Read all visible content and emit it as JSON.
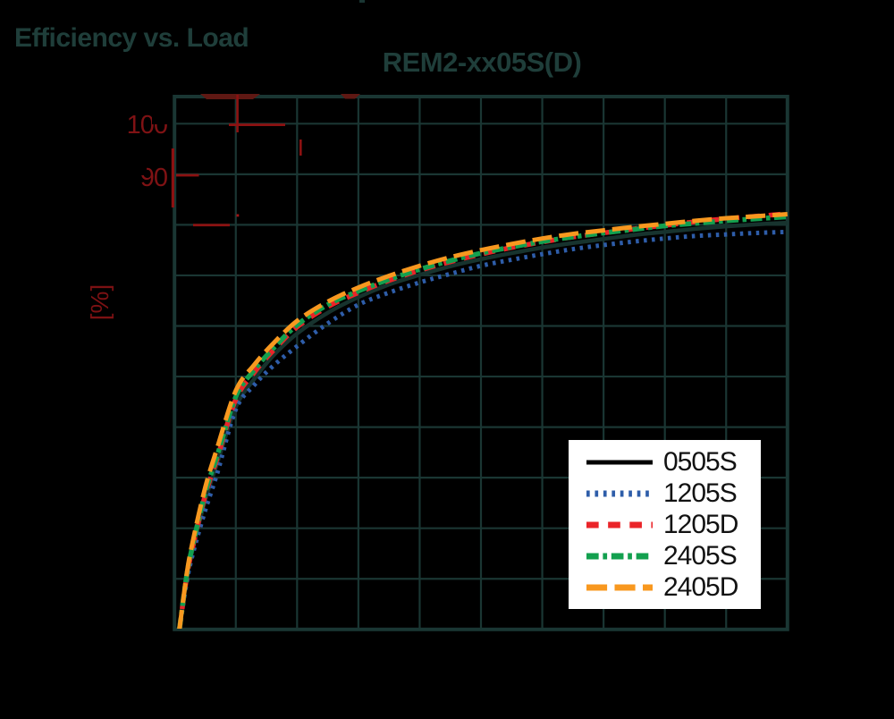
{
  "header": {
    "page_title": "Efficiency vs. Load",
    "chart_title": "REM2-xx05S(D)"
  },
  "y_axis": {
    "unit_label": "[%]",
    "visible_ticks": [
      "100",
      "90"
    ]
  },
  "colors": {
    "background": "#000000",
    "grid": "#1a3633",
    "plot_border": "#1a3633",
    "title_text": "#1f3e3a",
    "axis_label_red": "#7f1214",
    "legend_bg": "#ffffff",
    "legend_text": "#121212",
    "artifact_dark_red": "#5f1813",
    "artifact_mid_red": "#8c1111",
    "artifact_bright_red": "#a51315"
  },
  "chart_data": {
    "type": "line",
    "title": "REM2-xx05S(D)",
    "xlabel": "",
    "ylabel": "[%]",
    "xlim": [
      0,
      100
    ],
    "ylim": [
      0,
      105
    ],
    "grid": true,
    "x_gridline_step": 10,
    "y_gridline_step": 10,
    "legend_position": "lower right",
    "series": [
      {
        "name": "0505S",
        "legend_color": "#000000",
        "plot_color": "#17332e",
        "dash": [],
        "width": 4.5,
        "points": [
          [
            0.8,
            0
          ],
          [
            2,
            10
          ],
          [
            3,
            16
          ],
          [
            5,
            25.5
          ],
          [
            7,
            33
          ],
          [
            10,
            44
          ],
          [
            13,
            49.5
          ],
          [
            16,
            54
          ],
          [
            20,
            58.5
          ],
          [
            25,
            62.6
          ],
          [
            30,
            65.7
          ],
          [
            35,
            68.2
          ],
          [
            40,
            70.1
          ],
          [
            45,
            71.8
          ],
          [
            50,
            73.2
          ],
          [
            55,
            74.4
          ],
          [
            60,
            75.5
          ],
          [
            65,
            76.4
          ],
          [
            70,
            77.2
          ],
          [
            75,
            78
          ],
          [
            80,
            78.6
          ],
          [
            85,
            79.2
          ],
          [
            90,
            79.7
          ],
          [
            95,
            80.1
          ],
          [
            100,
            80.4
          ]
        ]
      },
      {
        "name": "1205S",
        "legend_color": "#2e5da9",
        "plot_color": "#2e5da9",
        "dash": [
          3.5,
          5.5
        ],
        "width": 5,
        "points": [
          [
            0.8,
            0
          ],
          [
            2,
            9.5
          ],
          [
            3,
            15
          ],
          [
            5,
            23.5
          ],
          [
            7,
            31
          ],
          [
            10,
            43.5
          ],
          [
            13,
            48.3
          ],
          [
            16,
            52
          ],
          [
            20,
            56
          ],
          [
            25,
            60.5
          ],
          [
            30,
            64.2
          ],
          [
            35,
            66.6
          ],
          [
            40,
            68.6
          ],
          [
            45,
            70.3
          ],
          [
            50,
            71.9
          ],
          [
            55,
            73.1
          ],
          [
            60,
            74.2
          ],
          [
            65,
            75.2
          ],
          [
            70,
            76
          ],
          [
            75,
            76.7
          ],
          [
            80,
            77.3
          ],
          [
            85,
            77.8
          ],
          [
            90,
            78.1
          ],
          [
            95,
            78.4
          ],
          [
            100,
            78.6
          ]
        ]
      },
      {
        "name": "1205D",
        "legend_color": "#ea2429",
        "plot_color": "#ea2429",
        "dash": [
          13,
          10
        ],
        "width": 5.5,
        "points": [
          [
            0.8,
            0
          ],
          [
            2,
            10.5
          ],
          [
            3,
            16.5
          ],
          [
            5,
            26.5
          ],
          [
            7,
            34
          ],
          [
            10,
            45.5
          ],
          [
            13,
            50.8
          ],
          [
            16,
            55
          ],
          [
            20,
            59.8
          ],
          [
            25,
            63.8
          ],
          [
            30,
            66.6
          ],
          [
            35,
            69
          ],
          [
            40,
            71
          ],
          [
            45,
            72.7
          ],
          [
            50,
            74.2
          ],
          [
            55,
            75.5
          ],
          [
            60,
            76.6
          ],
          [
            65,
            77.6
          ],
          [
            70,
            78.4
          ],
          [
            75,
            79.2
          ],
          [
            80,
            79.9
          ],
          [
            85,
            80.6
          ],
          [
            90,
            81.2
          ],
          [
            95,
            81.7
          ],
          [
            100,
            82.2
          ]
        ]
      },
      {
        "name": "2405S",
        "legend_color": "#13a04f",
        "plot_color": "#13a04f",
        "dash": [
          13,
          4.5,
          4.5,
          4.5
        ],
        "width": 5.5,
        "points": [
          [
            0.8,
            0
          ],
          [
            2,
            10.8
          ],
          [
            3,
            16.8
          ],
          [
            5,
            27
          ],
          [
            7,
            34.5
          ],
          [
            10,
            46
          ],
          [
            13,
            51.3
          ],
          [
            16,
            55.4
          ],
          [
            20,
            60.2
          ],
          [
            25,
            64.2
          ],
          [
            30,
            66.9
          ],
          [
            35,
            69.2
          ],
          [
            40,
            71.2
          ],
          [
            45,
            72.9
          ],
          [
            50,
            74.4
          ],
          [
            55,
            75.6
          ],
          [
            60,
            76.7
          ],
          [
            65,
            77.6
          ],
          [
            70,
            78.4
          ],
          [
            75,
            79.1
          ],
          [
            80,
            79.8
          ],
          [
            85,
            80.3
          ],
          [
            90,
            80.8
          ],
          [
            95,
            81.2
          ],
          [
            100,
            81.6
          ]
        ]
      },
      {
        "name": "2405D",
        "legend_color": "#f8981f",
        "plot_color": "#f8981f",
        "dash": [
          22,
          8
        ],
        "width": 5,
        "points": [
          [
            0.8,
            0
          ],
          [
            2,
            11
          ],
          [
            3,
            17.5
          ],
          [
            5,
            28
          ],
          [
            7,
            36
          ],
          [
            10,
            47.2
          ],
          [
            13,
            52.3
          ],
          [
            16,
            56.4
          ],
          [
            20,
            61
          ],
          [
            25,
            64.8
          ],
          [
            30,
            67.6
          ],
          [
            35,
            69.9
          ],
          [
            40,
            71.9
          ],
          [
            45,
            73.6
          ],
          [
            50,
            75
          ],
          [
            55,
            76.2
          ],
          [
            60,
            77.3
          ],
          [
            65,
            78.2
          ],
          [
            70,
            78.9
          ],
          [
            75,
            79.6
          ],
          [
            80,
            80.2
          ],
          [
            85,
            80.8
          ],
          [
            90,
            81.3
          ],
          [
            95,
            81.7
          ],
          [
            100,
            82.1
          ]
        ]
      }
    ]
  }
}
